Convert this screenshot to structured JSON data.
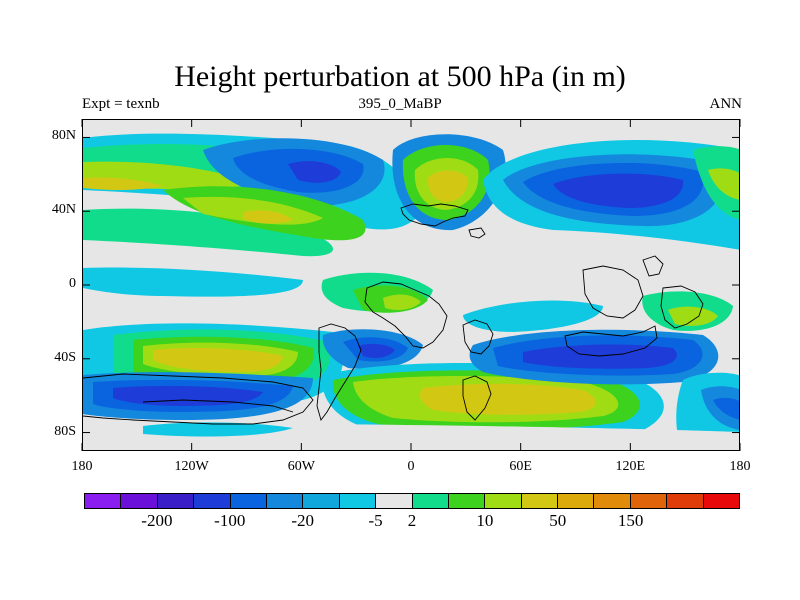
{
  "header": {
    "title": "Height perturbation at 500 hPa (in m)",
    "left_label": "Expt = texnb",
    "center_label": "395_0_MaBP",
    "right_label": "ANN"
  },
  "chart_data": {
    "type": "heatmap",
    "title": "Height perturbation at 500 hPa (in m)",
    "subtitle": "395_0_MaBP",
    "xlabel": "",
    "ylabel": "",
    "x_ticks": [
      "180",
      "120W",
      "60W",
      "0",
      "60E",
      "120E",
      "180"
    ],
    "y_ticks": [
      "80N",
      "40N",
      "0",
      "40S",
      "80S"
    ],
    "xlim": [
      -180,
      180
    ],
    "ylim": [
      -90,
      90
    ],
    "colorbar": {
      "labels": [
        "-200",
        "-100",
        "-20",
        "-5",
        "2",
        "10",
        "50",
        "150"
      ],
      "colors": [
        "#8a1ef0",
        "#6a10d8",
        "#3a1ec8",
        "#1e3cd8",
        "#0a64e0",
        "#1488dc",
        "#10a8dc",
        "#10c8e4",
        "#e6e6e6",
        "#10dc8c",
        "#3cd21e",
        "#a0dc14",
        "#d2c814",
        "#dcaa0a",
        "#e08c0a",
        "#e0640a",
        "#e03c0a",
        "#e80a0a"
      ]
    }
  }
}
